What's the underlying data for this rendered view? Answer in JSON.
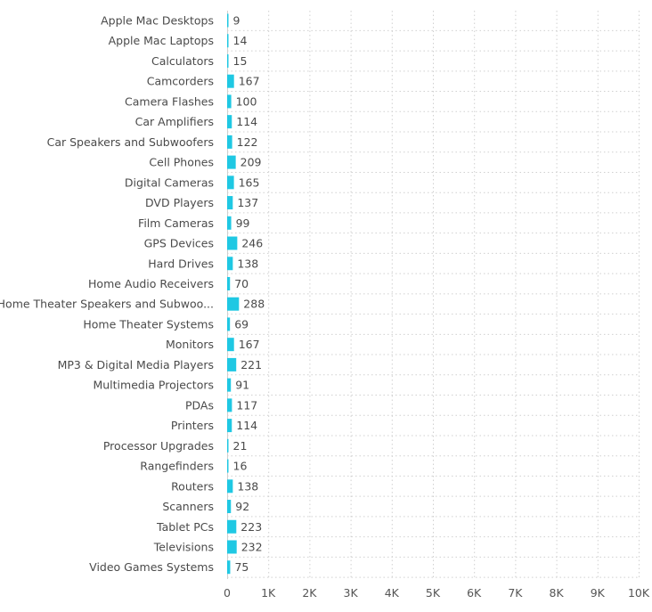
{
  "chart_data": {
    "type": "bar",
    "orientation": "horizontal",
    "bar_color": "#1fc8e3",
    "xlim": [
      0,
      10000
    ],
    "grid": true,
    "x_ticks": [
      "0",
      "1K",
      "2K",
      "3K",
      "4K",
      "5K",
      "6K",
      "7K",
      "8K",
      "9K",
      "10K"
    ],
    "x_tick_values": [
      0,
      1000,
      2000,
      3000,
      4000,
      5000,
      6000,
      7000,
      8000,
      9000,
      10000
    ],
    "categories": [
      "Apple Mac Desktops",
      "Apple Mac Laptops",
      "Calculators",
      "Camcorders",
      "Camera Flashes",
      "Car Amplifiers",
      "Car Speakers and Subwoofers",
      "Cell Phones",
      "Digital Cameras",
      "DVD Players",
      "Film Cameras",
      "GPS Devices",
      "Hard Drives",
      "Home Audio Receivers",
      "Home Theater Speakers and Subwoo...",
      "Home Theater Systems",
      "Monitors",
      "MP3 & Digital Media Players",
      "Multimedia Projectors",
      "PDAs",
      "Printers",
      "Processor Upgrades",
      "Rangefinders",
      "Routers",
      "Scanners",
      "Tablet PCs",
      "Televisions",
      "Video Games Systems"
    ],
    "values": [
      9,
      14,
      15,
      167,
      100,
      114,
      122,
      209,
      165,
      137,
      99,
      246,
      138,
      70,
      288,
      69,
      167,
      221,
      91,
      117,
      114,
      21,
      16,
      138,
      92,
      223,
      232,
      75
    ],
    "value_labels": [
      "9",
      "14",
      "15",
      "167",
      "100",
      "114",
      "122",
      "209",
      "165",
      "137",
      "99",
      "246",
      "138",
      "70",
      "288",
      "69",
      "167",
      "221",
      "91",
      "117",
      "114",
      "21",
      "16",
      "138",
      "92",
      "223",
      "232",
      "75"
    ]
  }
}
